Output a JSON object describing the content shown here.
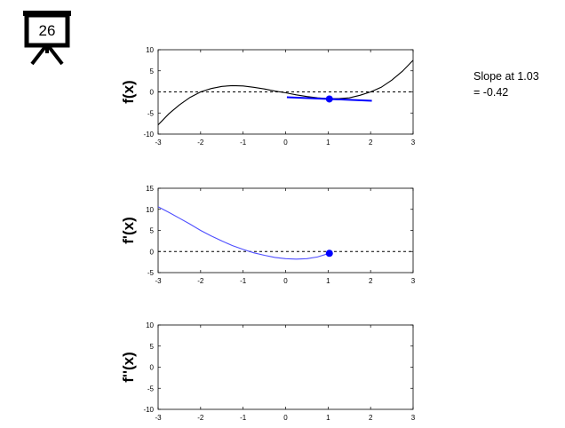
{
  "slide": {
    "number": "26",
    "icon": "presentation-board-icon"
  },
  "readout": {
    "line1": "Slope at 1.03",
    "line2": "= -0.42"
  },
  "colors": {
    "f_curve": "#000000",
    "derivative": "#0000ff",
    "derivative_light": "#4d4dff",
    "zero_line": "#000000"
  },
  "chart_data": [
    {
      "type": "line",
      "ylabel": "f(x)",
      "xlim": [
        -3,
        3
      ],
      "ylim": [
        -10,
        10
      ],
      "xticks": [
        "-3",
        "-2",
        "-1",
        "0",
        "1",
        "2",
        "3"
      ],
      "yticks": [
        "10",
        "5",
        "0",
        "-5",
        "-10"
      ],
      "grid": false,
      "reference_line_y": 0,
      "series": [
        {
          "x": [
            -3,
            -2.75,
            -2.5,
            -2.25,
            -2,
            -1.75,
            -1.5,
            -1.25,
            -1,
            -0.75,
            -0.5,
            -0.25,
            0,
            0.25,
            0.5,
            0.75,
            1,
            1.25,
            1.5,
            1.75,
            2,
            2.25,
            2.5,
            2.75,
            3
          ],
          "y": [
            -7.8,
            -5.2,
            -3.1,
            -1.3,
            0.0,
            0.8,
            1.3,
            1.5,
            1.4,
            1.1,
            0.7,
            0.2,
            -0.2,
            -0.7,
            -1.1,
            -1.4,
            -1.6,
            -1.6,
            -1.4,
            -0.8,
            0.0,
            1.1,
            2.8,
            4.9,
            7.5
          ]
        }
      ],
      "tangent": {
        "x": [
          0.03,
          2.03
        ],
        "y": [
          -1.26,
          -2.1
        ]
      },
      "marker": {
        "x": 1.03,
        "y": -1.68
      }
    },
    {
      "type": "line",
      "ylabel": "f'(x)",
      "xlim": [
        -3,
        3
      ],
      "ylim": [
        -5,
        15
      ],
      "xticks": [
        "-3",
        "-2",
        "-1",
        "0",
        "1",
        "2",
        "3"
      ],
      "yticks": [
        "15",
        "10",
        "5",
        "0",
        "-5"
      ],
      "grid": false,
      "reference_line_y": 0,
      "series": [
        {
          "x": [
            -3,
            -2.75,
            -2.5,
            -2.25,
            -2,
            -1.75,
            -1.5,
            -1.25,
            -1,
            -0.75,
            -0.5,
            -0.25,
            0,
            0.25,
            0.5,
            0.75,
            1.03
          ],
          "y": [
            10.6,
            9.3,
            7.9,
            6.5,
            5.0,
            3.7,
            2.5,
            1.4,
            0.5,
            -0.3,
            -0.9,
            -1.4,
            -1.7,
            -1.8,
            -1.7,
            -1.3,
            -0.42
          ]
        }
      ],
      "marker": {
        "x": 1.03,
        "y": -0.42
      }
    },
    {
      "type": "line",
      "ylabel": "f''(x)",
      "xlim": [
        -3,
        3
      ],
      "ylim": [
        -10,
        10
      ],
      "xticks": [
        "-3",
        "-2",
        "-1",
        "0",
        "1",
        "2",
        "3"
      ],
      "yticks": [
        "10",
        "5",
        "0",
        "-5",
        "-10"
      ],
      "grid": false,
      "series": []
    }
  ]
}
